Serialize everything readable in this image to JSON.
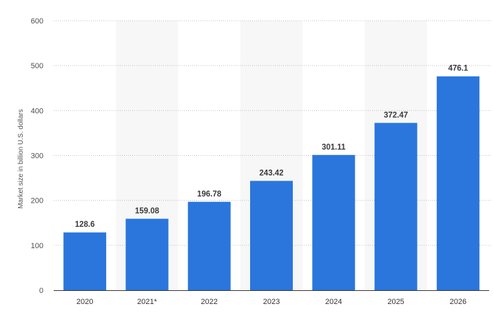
{
  "chart_data": {
    "type": "bar",
    "categories": [
      "2020",
      "2021*",
      "2022",
      "2023",
      "2024",
      "2025",
      "2026"
    ],
    "values": [
      128.6,
      159.08,
      196.78,
      243.42,
      301.11,
      372.47,
      476.1
    ],
    "value_labels": [
      "128.6",
      "159.08",
      "196.78",
      "243.42",
      "301.11",
      "372.47",
      "476.1"
    ],
    "ylabel": "Market size in billion U.S. dollars",
    "ylim": [
      0,
      600
    ],
    "yticks": [
      0,
      100,
      200,
      300,
      400,
      500,
      600
    ],
    "grid": true,
    "bar_color": "#2a76dd",
    "band_color": "#f7f7f7"
  }
}
